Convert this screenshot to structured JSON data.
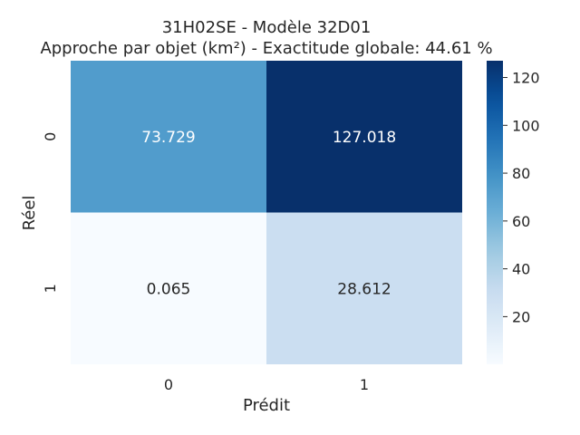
{
  "chart_data": {
    "type": "heatmap",
    "title": "31H02SE - Modèle 32D01",
    "subtitle": "Approche par objet (km²) - Exactitude globale: 44.61 %",
    "xlabel": "Prédit",
    "ylabel": "Réel",
    "x_categories": [
      "0",
      "1"
    ],
    "y_categories": [
      "0",
      "1"
    ],
    "values": [
      [
        73.729,
        127.018
      ],
      [
        0.065,
        28.612
      ]
    ],
    "value_labels": [
      [
        "73.729",
        "127.018"
      ],
      [
        "0.065",
        "28.612"
      ]
    ],
    "colorbar": {
      "min": 0.065,
      "max": 127.018,
      "ticks": [
        20,
        40,
        60,
        80,
        100,
        120
      ],
      "colormap": "Blues"
    }
  }
}
